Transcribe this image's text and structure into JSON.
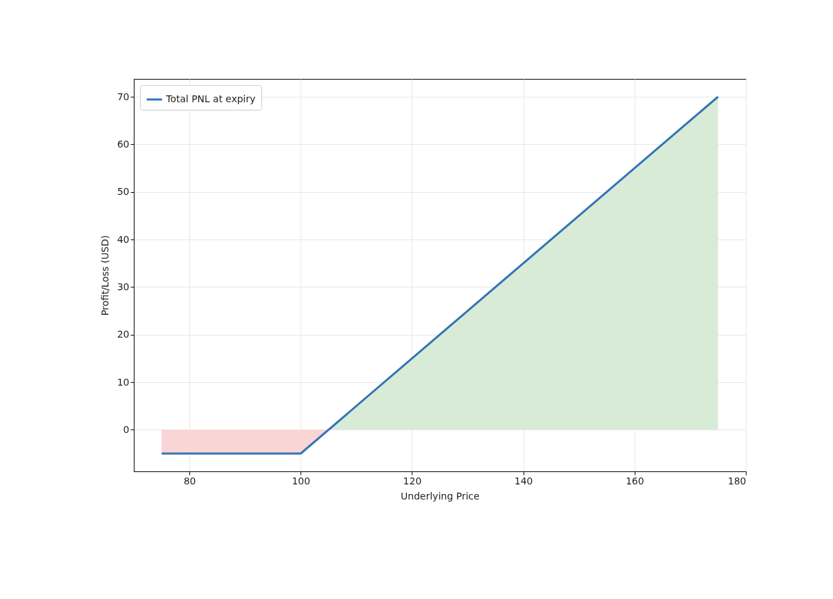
{
  "chart_data": {
    "type": "line",
    "xlabel": "Underlying Price",
    "ylabel": "Profit/Loss (USD)",
    "xlim": [
      70,
      180
    ],
    "xticks": [
      80,
      100,
      120,
      140,
      160,
      180
    ],
    "ylim": [
      -8.75,
      73.75
    ],
    "yticks": [
      0,
      10,
      20,
      30,
      40,
      50,
      60,
      70
    ],
    "grid": true,
    "legend": "top left",
    "line_style": "solid",
    "marker": "none",
    "series": [
      {
        "type": "area",
        "color": "#fad5d5",
        "x": [
          75,
          100,
          105
        ],
        "values": [
          -5,
          -5,
          0
        ]
      },
      {
        "type": "area",
        "color": "#d8ebd6",
        "x": [
          105,
          175
        ],
        "values": [
          0,
          70
        ]
      },
      {
        "name": "Total PNL at expiry",
        "color": "#3274b5",
        "x": [
          75,
          100,
          175
        ],
        "values": [
          -5,
          -5,
          70
        ]
      }
    ]
  }
}
